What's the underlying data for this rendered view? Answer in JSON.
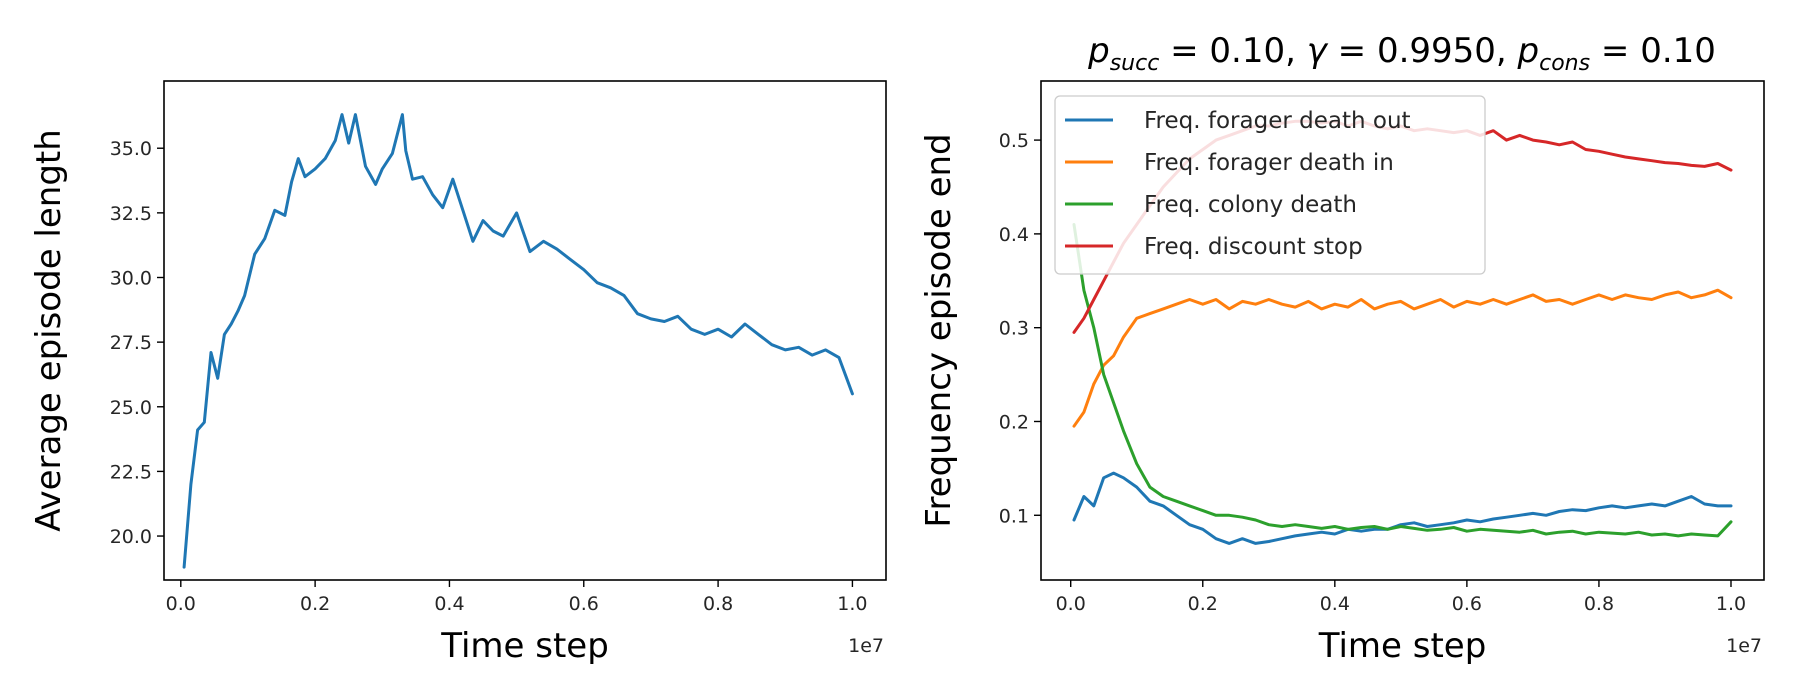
{
  "chart_data": [
    {
      "type": "line",
      "title": "",
      "xlabel": "Time step",
      "ylabel": "Average episode length",
      "x_offset_label": "1e7",
      "xlim": [
        -0.025,
        1.05
      ],
      "ylim": [
        18.3,
        37.6
      ],
      "xticks": [
        0.0,
        0.2,
        0.4,
        0.6,
        0.8,
        1.0
      ],
      "xtick_labels": [
        "0.0",
        "0.2",
        "0.4",
        "0.6",
        "0.8",
        "1.0"
      ],
      "yticks": [
        20.0,
        22.5,
        25.0,
        27.5,
        30.0,
        32.5,
        35.0
      ],
      "ytick_labels": [
        "20.0",
        "22.5",
        "25.0",
        "27.5",
        "30.0",
        "32.5",
        "35.0"
      ],
      "grid": false,
      "series": [
        {
          "name": "",
          "color": "#1f77b4",
          "x": [
            0.005,
            0.015,
            0.025,
            0.035,
            0.045,
            0.055,
            0.065,
            0.075,
            0.085,
            0.095,
            0.11,
            0.125,
            0.14,
            0.155,
            0.165,
            0.175,
            0.185,
            0.2,
            0.215,
            0.23,
            0.24,
            0.25,
            0.26,
            0.275,
            0.29,
            0.3,
            0.315,
            0.33,
            0.335,
            0.345,
            0.36,
            0.375,
            0.39,
            0.405,
            0.42,
            0.435,
            0.45,
            0.465,
            0.48,
            0.5,
            0.52,
            0.54,
            0.56,
            0.58,
            0.6,
            0.62,
            0.64,
            0.66,
            0.68,
            0.7,
            0.72,
            0.74,
            0.76,
            0.78,
            0.8,
            0.82,
            0.84,
            0.86,
            0.88,
            0.9,
            0.92,
            0.94,
            0.96,
            0.98,
            0.99,
            1.0
          ],
          "values": [
            18.8,
            22.0,
            24.1,
            24.4,
            27.1,
            26.1,
            27.8,
            28.2,
            28.7,
            29.3,
            30.9,
            31.5,
            32.6,
            32.4,
            33.7,
            34.6,
            33.9,
            34.2,
            34.6,
            35.3,
            36.3,
            35.2,
            36.3,
            34.3,
            33.6,
            34.2,
            34.8,
            36.3,
            34.9,
            33.8,
            33.9,
            33.2,
            32.7,
            33.8,
            32.6,
            31.4,
            32.2,
            31.8,
            31.6,
            32.5,
            31.0,
            31.4,
            31.1,
            30.7,
            30.3,
            29.8,
            29.6,
            29.3,
            28.6,
            28.4,
            28.3,
            28.5,
            28.0,
            27.8,
            28.0,
            27.7,
            28.2,
            27.8,
            27.4,
            27.2,
            27.3,
            27.0,
            27.2,
            26.9,
            26.2,
            25.5
          ]
        }
      ]
    },
    {
      "type": "line",
      "title": "p_succ = 0.10, γ = 0.9950, p_cons = 0.10",
      "xlabel": "Time step",
      "ylabel": "Frequency episode end",
      "x_offset_label": "1e7",
      "xlim": [
        -0.045,
        1.05
      ],
      "ylim": [
        0.031,
        0.563
      ],
      "xticks": [
        0.0,
        0.2,
        0.4,
        0.6,
        0.8,
        1.0
      ],
      "xtick_labels": [
        "0.0",
        "0.2",
        "0.4",
        "0.6",
        "0.8",
        "1.0"
      ],
      "yticks": [
        0.1,
        0.2,
        0.3,
        0.4,
        0.5
      ],
      "ytick_labels": [
        "0.1",
        "0.2",
        "0.3",
        "0.4",
        "0.5"
      ],
      "grid": false,
      "legend_position": "upper-left",
      "x": [
        0.005,
        0.02,
        0.035,
        0.05,
        0.065,
        0.08,
        0.1,
        0.12,
        0.14,
        0.16,
        0.18,
        0.2,
        0.22,
        0.24,
        0.26,
        0.28,
        0.3,
        0.32,
        0.34,
        0.36,
        0.38,
        0.4,
        0.42,
        0.44,
        0.46,
        0.48,
        0.5,
        0.52,
        0.54,
        0.56,
        0.58,
        0.6,
        0.62,
        0.64,
        0.66,
        0.68,
        0.7,
        0.72,
        0.74,
        0.76,
        0.78,
        0.8,
        0.82,
        0.84,
        0.86,
        0.88,
        0.9,
        0.92,
        0.94,
        0.96,
        0.98,
        1.0
      ],
      "series": [
        {
          "name": "Freq. forager death out",
          "color": "#1f77b4",
          "values": [
            0.095,
            0.12,
            0.11,
            0.14,
            0.145,
            0.14,
            0.13,
            0.115,
            0.11,
            0.1,
            0.09,
            0.085,
            0.075,
            0.07,
            0.075,
            0.07,
            0.072,
            0.075,
            0.078,
            0.08,
            0.082,
            0.08,
            0.085,
            0.083,
            0.085,
            0.085,
            0.09,
            0.092,
            0.088,
            0.09,
            0.092,
            0.095,
            0.093,
            0.096,
            0.098,
            0.1,
            0.102,
            0.1,
            0.104,
            0.106,
            0.105,
            0.108,
            0.11,
            0.108,
            0.11,
            0.112,
            0.11,
            0.115,
            0.12,
            0.112,
            0.11,
            0.11
          ]
        },
        {
          "name": "Freq. forager death in",
          "color": "#ff7f0e",
          "values": [
            0.195,
            0.21,
            0.24,
            0.26,
            0.27,
            0.29,
            0.31,
            0.315,
            0.32,
            0.325,
            0.33,
            0.325,
            0.33,
            0.32,
            0.328,
            0.325,
            0.33,
            0.325,
            0.322,
            0.328,
            0.32,
            0.325,
            0.322,
            0.33,
            0.32,
            0.325,
            0.328,
            0.32,
            0.325,
            0.33,
            0.322,
            0.328,
            0.325,
            0.33,
            0.325,
            0.33,
            0.335,
            0.328,
            0.33,
            0.325,
            0.33,
            0.335,
            0.33,
            0.335,
            0.332,
            0.33,
            0.335,
            0.338,
            0.332,
            0.335,
            0.34,
            0.332
          ]
        },
        {
          "name": "Freq. colony death",
          "color": "#2ca02c",
          "values": [
            0.41,
            0.34,
            0.3,
            0.25,
            0.22,
            0.19,
            0.155,
            0.13,
            0.12,
            0.115,
            0.11,
            0.105,
            0.1,
            0.1,
            0.098,
            0.095,
            0.09,
            0.088,
            0.09,
            0.088,
            0.086,
            0.088,
            0.085,
            0.087,
            0.088,
            0.085,
            0.088,
            0.086,
            0.084,
            0.085,
            0.087,
            0.083,
            0.085,
            0.084,
            0.083,
            0.082,
            0.084,
            0.08,
            0.082,
            0.083,
            0.08,
            0.082,
            0.081,
            0.08,
            0.082,
            0.079,
            0.08,
            0.078,
            0.08,
            0.079,
            0.078,
            0.093
          ]
        },
        {
          "name": "Freq. discount stop",
          "color": "#d62728",
          "values": [
            0.295,
            0.31,
            0.33,
            0.35,
            0.37,
            0.39,
            0.41,
            0.43,
            0.45,
            0.465,
            0.48,
            0.49,
            0.5,
            0.505,
            0.51,
            0.515,
            0.515,
            0.518,
            0.52,
            0.52,
            0.518,
            0.52,
            0.515,
            0.52,
            0.515,
            0.512,
            0.515,
            0.51,
            0.512,
            0.51,
            0.508,
            0.51,
            0.505,
            0.51,
            0.5,
            0.505,
            0.5,
            0.498,
            0.495,
            0.498,
            0.49,
            0.488,
            0.485,
            0.482,
            0.48,
            0.478,
            0.476,
            0.475,
            0.473,
            0.472,
            0.475,
            0.468
          ]
        }
      ]
    }
  ]
}
